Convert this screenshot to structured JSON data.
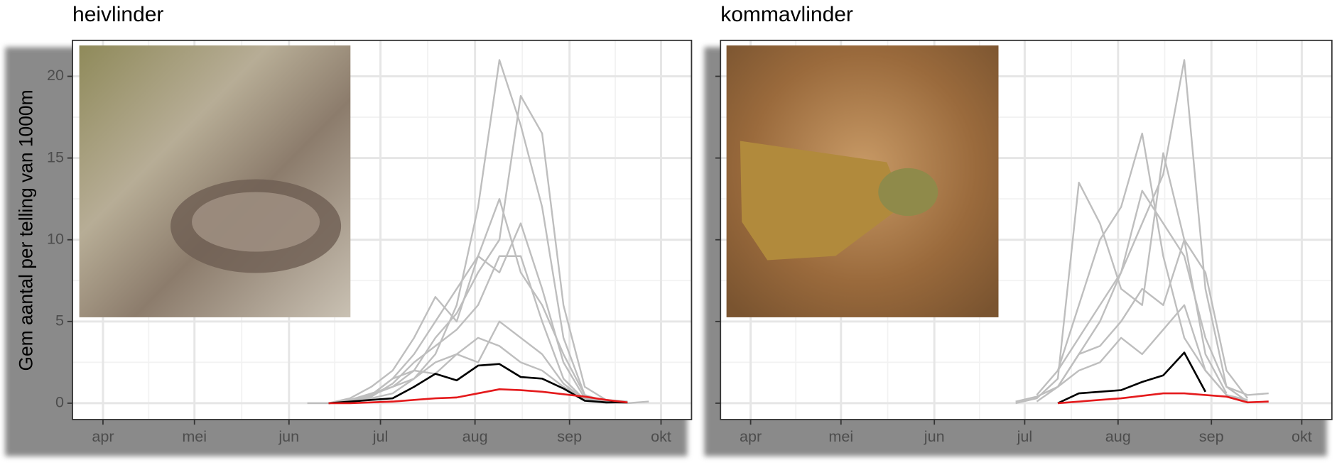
{
  "chart_data": [
    {
      "type": "line",
      "title": "heivlinder",
      "y_label": "Gem aantal per telling van 1000m",
      "x": [
        151,
        158,
        165,
        172,
        179,
        186,
        193,
        200,
        207,
        214,
        221,
        228,
        235,
        242,
        249,
        256,
        263,
        270
      ],
      "xlim": [
        81,
        284
      ],
      "xticks": [
        {
          "value": 91,
          "label": "apr"
        },
        {
          "value": 121,
          "label": "mei"
        },
        {
          "value": 152,
          "label": "jun"
        },
        {
          "value": 182,
          "label": "jul"
        },
        {
          "value": 213,
          "label": "aug"
        },
        {
          "value": 244,
          "label": "sep"
        },
        {
          "value": 274,
          "label": "okt"
        }
      ],
      "ylim": [
        -1,
        22.2
      ],
      "yticks": [
        0,
        5,
        10,
        15,
        20
      ],
      "grid": true,
      "show_ytick_labels": true,
      "series": [
        {
          "color": "#bebebe",
          "values": [
            null,
            0,
            0,
            0.1,
            0.3,
            0.6,
            1.5,
            3,
            6,
            12,
            21,
            17,
            12,
            4,
            0.5,
            0.1,
            0,
            0.1
          ]
        },
        {
          "color": "#bebebe",
          "values": [
            null,
            null,
            0,
            0.2,
            0.5,
            1,
            2,
            4,
            5.5,
            8,
            10,
            18.8,
            16.5,
            6,
            1,
            0.2,
            0.1,
            null
          ]
        },
        {
          "color": "#bebebe",
          "values": [
            null,
            null,
            null,
            0.1,
            0.5,
            1.5,
            3,
            5,
            7,
            9,
            12.5,
            8,
            6,
            3,
            0.5,
            0.1,
            null,
            null
          ]
        },
        {
          "color": "#bebebe",
          "values": [
            null,
            null,
            0,
            0.3,
            1,
            2,
            4,
            6.5,
            5,
            9,
            8,
            11,
            7,
            2.5,
            0.3,
            0,
            0.1,
            null
          ]
        },
        {
          "color": "#bebebe",
          "values": [
            null,
            null,
            null,
            0,
            0.4,
            1.2,
            2.5,
            3.5,
            4.5,
            6,
            9,
            9,
            5,
            1.5,
            0.2,
            null,
            null,
            null
          ]
        },
        {
          "color": "#bebebe",
          "values": [
            null,
            null,
            0,
            0.2,
            0.6,
            1,
            1.5,
            2.5,
            3,
            4,
            3.5,
            2.5,
            2,
            1,
            0.3,
            0.1,
            0,
            null
          ]
        },
        {
          "color": "#bebebe",
          "values": [
            null,
            null,
            null,
            0.1,
            0.5,
            1.5,
            2,
            1.8,
            3,
            2.5,
            5,
            4,
            3,
            1.2,
            0.2,
            null,
            null,
            null
          ]
        },
        {
          "color": "#000000",
          "values": [
            null,
            null,
            0,
            0.1,
            0.2,
            0.3,
            1.0,
            1.8,
            1.4,
            2.3,
            2.4,
            1.6,
            1.5,
            0.9,
            0.15,
            0.05,
            0.05,
            null
          ]
        },
        {
          "color": "#e41a1c",
          "values": [
            null,
            null,
            0,
            0,
            0.05,
            0.1,
            0.2,
            0.3,
            0.35,
            0.6,
            0.85,
            0.8,
            0.7,
            0.55,
            0.4,
            0.2,
            0.05,
            null
          ]
        }
      ]
    },
    {
      "type": "line",
      "title": "kommavlinder",
      "x": [
        179,
        186,
        193,
        200,
        207,
        214,
        221,
        228,
        235,
        242,
        249,
        256,
        263
      ],
      "xlim": [
        81,
        284
      ],
      "xticks": [
        {
          "value": 91,
          "label": "apr"
        },
        {
          "value": 121,
          "label": "mei"
        },
        {
          "value": 152,
          "label": "jun"
        },
        {
          "value": 182,
          "label": "jul"
        },
        {
          "value": 213,
          "label": "aug"
        },
        {
          "value": 244,
          "label": "sep"
        },
        {
          "value": 274,
          "label": "okt"
        }
      ],
      "ylim": [
        -1,
        22.2
      ],
      "yticks": [
        0,
        5,
        10,
        15,
        20
      ],
      "grid": true,
      "show_ytick_labels": false,
      "series": [
        {
          "color": "#bebebe",
          "values": [
            null,
            0.1,
            1,
            3,
            5,
            8,
            11,
            14,
            21,
            7,
            1,
            0.1,
            null
          ]
        },
        {
          "color": "#bebebe",
          "values": [
            null,
            null,
            2,
            6,
            10,
            12,
            16.5,
            9,
            4,
            2,
            0.5,
            0.2,
            null
          ]
        },
        {
          "color": "#bebebe",
          "values": [
            0,
            0.3,
            1.5,
            13.5,
            11,
            7,
            6,
            15.3,
            10,
            3,
            0.6,
            null,
            null
          ]
        },
        {
          "color": "#bebebe",
          "values": [
            null,
            0.5,
            2,
            4,
            6,
            8,
            13,
            11,
            9,
            4,
            1,
            0.5,
            0.6
          ]
        },
        {
          "color": "#bebebe",
          "values": [
            null,
            null,
            1,
            3,
            3.5,
            5,
            7,
            6,
            10,
            8,
            2,
            0.3,
            null
          ]
        },
        {
          "color": "#bebebe",
          "values": [
            0.1,
            0.4,
            1,
            2,
            2.5,
            4,
            3,
            4.5,
            6,
            2,
            0.5,
            0.1,
            null
          ]
        },
        {
          "color": "#000000",
          "values": [
            null,
            null,
            0,
            0.6,
            0.7,
            0.8,
            1.3,
            1.7,
            3.1,
            0.7,
            null,
            null,
            null
          ]
        },
        {
          "color": "#e41a1c",
          "values": [
            null,
            null,
            0,
            0.1,
            0.2,
            0.3,
            0.45,
            0.6,
            0.6,
            0.5,
            0.4,
            0.05,
            0.1
          ]
        }
      ]
    }
  ]
}
